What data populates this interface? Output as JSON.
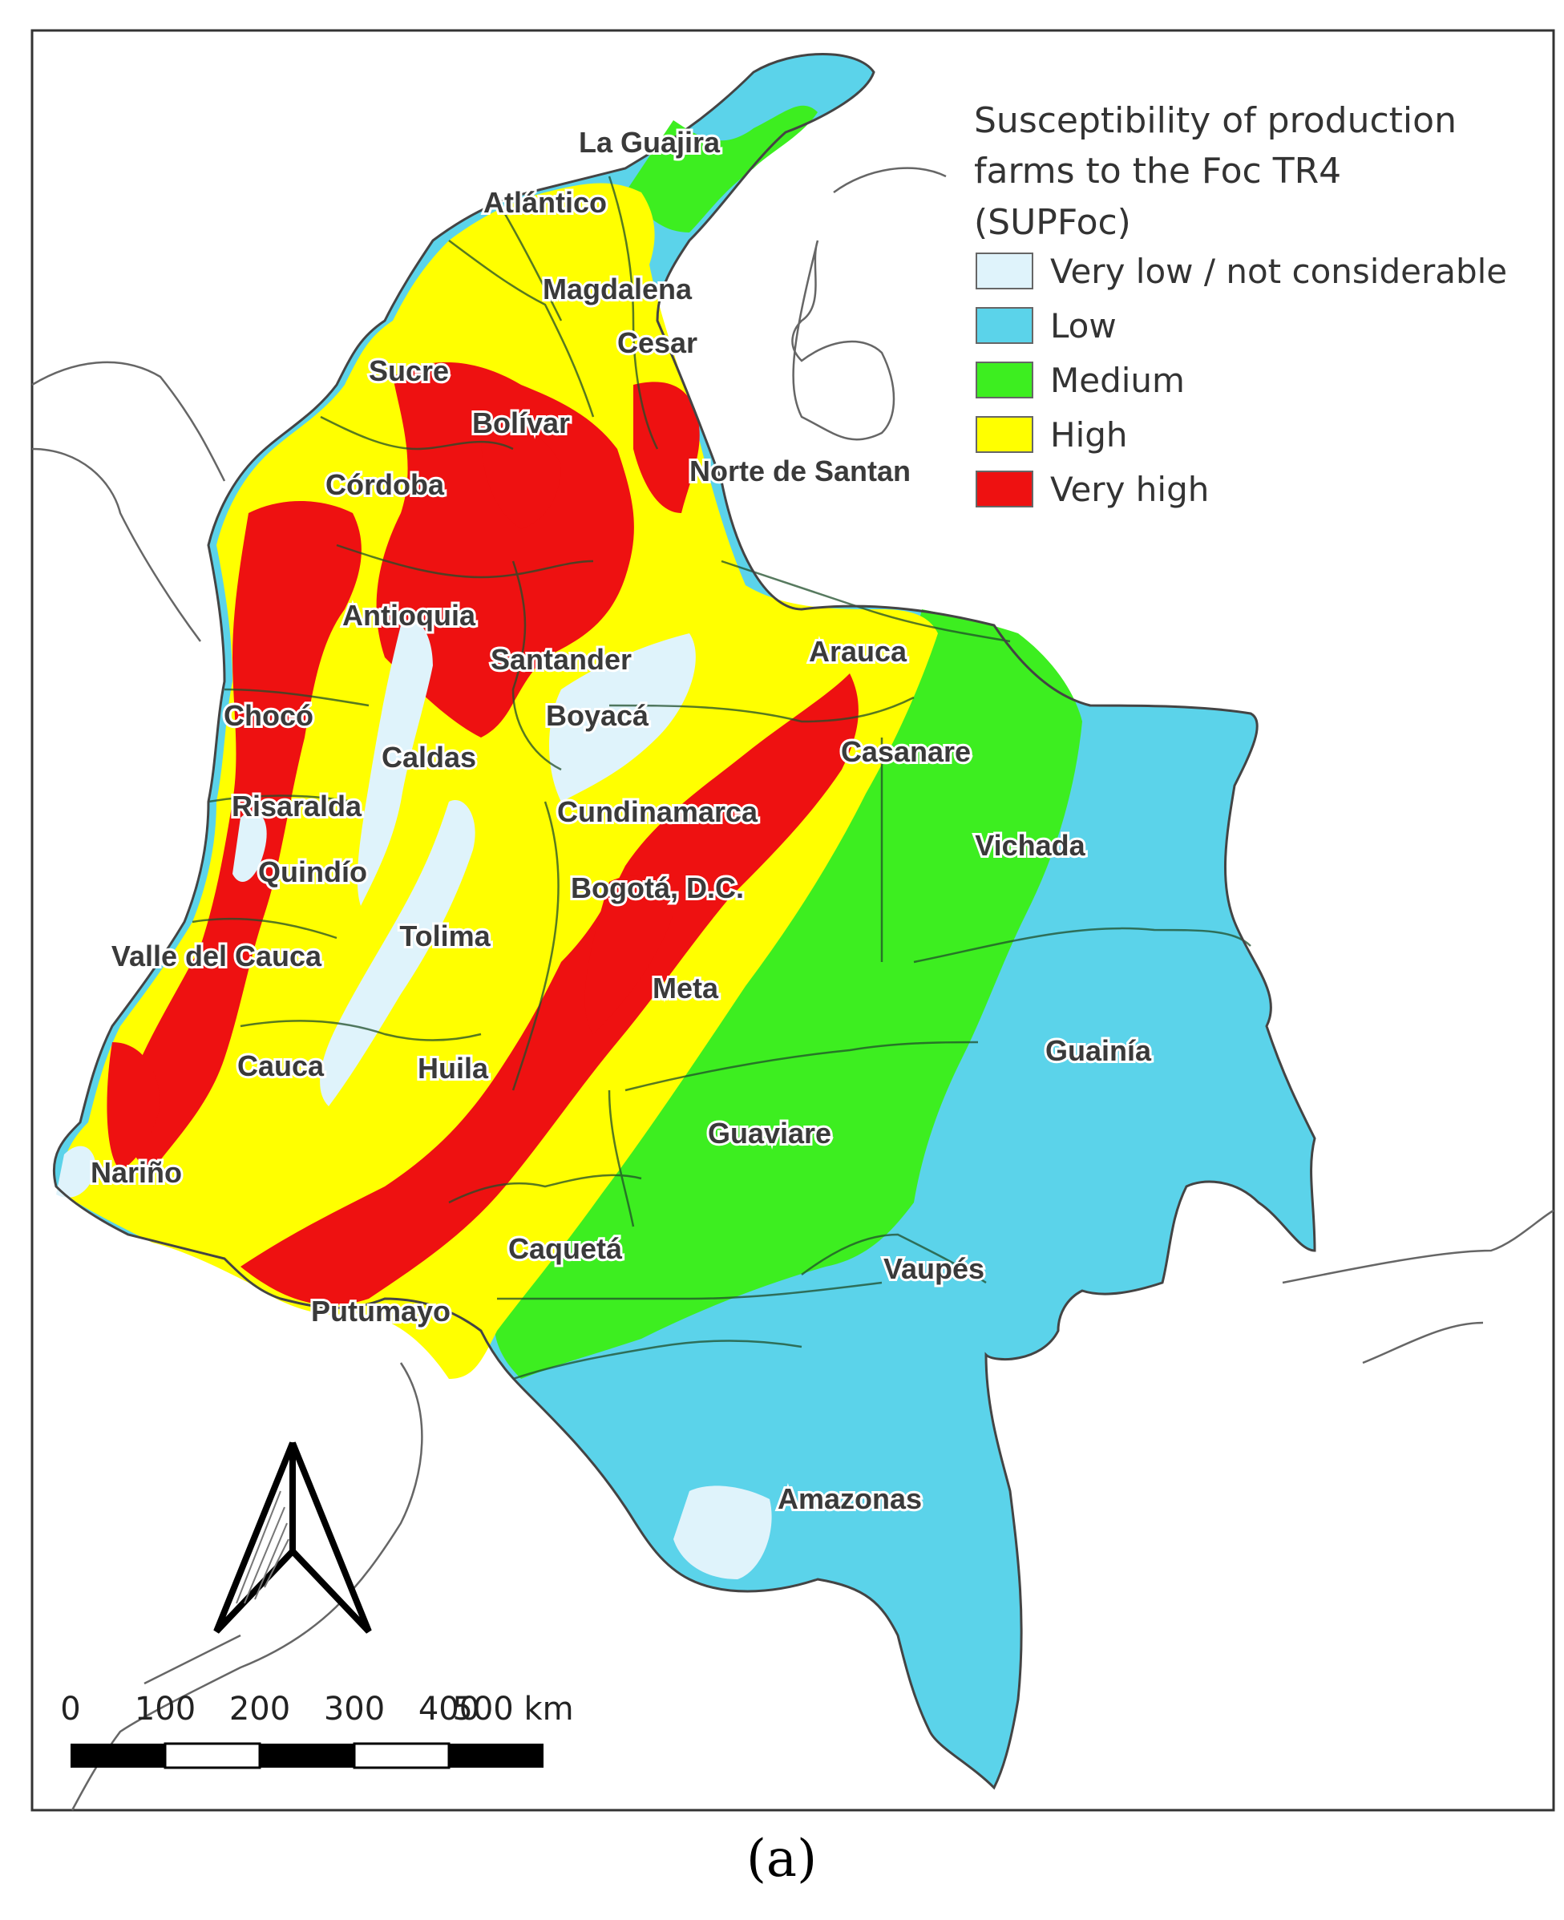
{
  "legend": {
    "title_lines": [
      "Susceptibility of production",
      "farms to the Foc TR4",
      "(SUPFoc)"
    ],
    "classes": [
      {
        "label": "Very low / not considerable",
        "color": "#dff3fb"
      },
      {
        "label": "Low",
        "color": "#5bd3ea"
      },
      {
        "label": "Medium",
        "color": "#3dee20"
      },
      {
        "label": "High",
        "color": "#ffff00"
      },
      {
        "label": "Very high",
        "color": "#ee1111"
      }
    ]
  },
  "departments": [
    "La Guajira",
    "Atlántico",
    "Magdalena",
    "Cesar",
    "Sucre",
    "Bolívar",
    "Norte de Santan",
    "Córdoba",
    "Antioquia",
    "Santander",
    "Arauca",
    "Chocó",
    "Boyacá",
    "Caldas",
    "Casanare",
    "Risaralda",
    "Cundinamarca",
    "Vichada",
    "Quindío",
    "Bogotá, D.C.",
    "Tolima",
    "Valle del Cauca",
    "Meta",
    "Guainía",
    "Cauca",
    "Huila",
    "Guaviare",
    "Nariño",
    "Caquetá",
    "Vaupés",
    "Putumayo",
    "Amazonas"
  ],
  "scale_bar": {
    "ticks": [
      "0",
      "100",
      "200",
      "300",
      "400",
      "500 km"
    ]
  },
  "north_arrow": "north-arrow-icon",
  "caption": "(a)"
}
